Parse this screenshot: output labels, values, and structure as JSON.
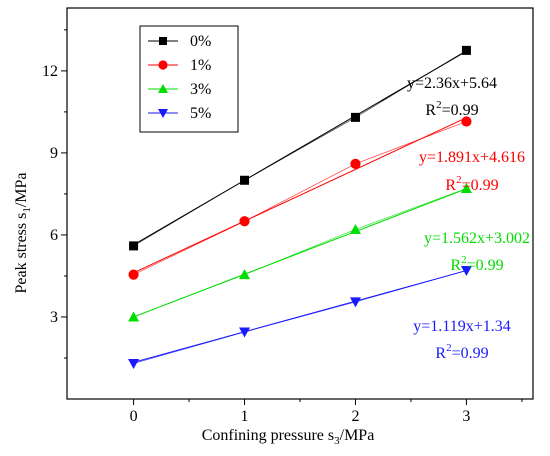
{
  "chart_data": {
    "type": "scatter",
    "title": "",
    "xlabel": {
      "main": "Confining pressure s",
      "sub": "3",
      "tail": "/MPa"
    },
    "ylabel": {
      "main": "Peak stress s",
      "sub": "1",
      "tail": "/MPa"
    },
    "xlim": [
      -0.6,
      3.6
    ],
    "ylim": [
      0,
      14.3
    ],
    "xticks": [
      0,
      1,
      2,
      3
    ],
    "yticks": [
      3,
      6,
      9,
      12
    ],
    "grid": false,
    "legend_position": "top-left",
    "series": [
      {
        "name": "0%",
        "color": "#000000",
        "marker": "square",
        "x": [
          0,
          1,
          2,
          3
        ],
        "y": [
          5.6,
          8.0,
          10.3,
          12.75
        ],
        "fit": {
          "slope": 2.36,
          "intercept": 5.64
        },
        "equation": "y=2.36x+5.64",
        "r2_prefix": "R",
        "r2_sup": "2",
        "r2_value": "=0.99"
      },
      {
        "name": "1%",
        "color": "#ff0000",
        "marker": "circle",
        "x": [
          0,
          1,
          2,
          3
        ],
        "y": [
          4.55,
          6.5,
          8.6,
          10.15
        ],
        "fit": {
          "slope": 1.891,
          "intercept": 4.616
        },
        "equation": "y=1.891x+4.616",
        "r2_prefix": "R",
        "r2_sup": "2",
        "r2_value": "=0.99"
      },
      {
        "name": "3%",
        "color": "#00dd00",
        "marker": "triangle-up",
        "x": [
          0,
          1,
          2,
          3
        ],
        "y": [
          3.0,
          4.55,
          6.2,
          7.7
        ],
        "fit": {
          "slope": 1.562,
          "intercept": 3.002
        },
        "equation": "y=1.562x+3.002",
        "r2_prefix": "R",
        "r2_sup": "2",
        "r2_value": "=0.99"
      },
      {
        "name": "5%",
        "color": "#1a1aff",
        "marker": "triangle-down",
        "x": [
          0,
          1,
          2,
          3
        ],
        "y": [
          1.3,
          2.45,
          3.55,
          4.7
        ],
        "fit": {
          "slope": 1.119,
          "intercept": 1.34
        },
        "equation": "y=1.119x+1.34",
        "r2_prefix": "R",
        "r2_sup": "2",
        "r2_value": "=0.99"
      }
    ]
  }
}
